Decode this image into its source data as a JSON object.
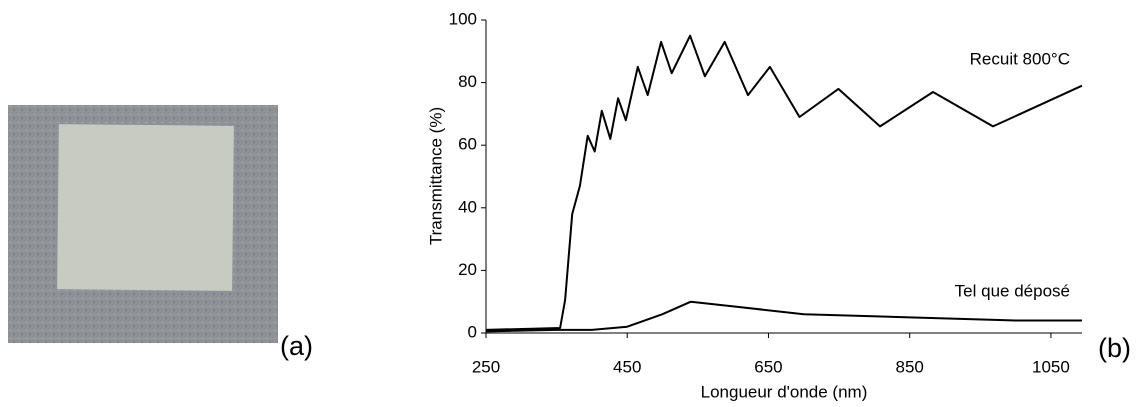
{
  "panel_labels": [
    "(a)",
    "(b)"
  ],
  "chart_data": {
    "type": "line",
    "x_label": "Longueur d'onde (nm)",
    "y_label": "Transmittance (%)",
    "xlim": [
      250,
      1094
    ],
    "ylim": [
      0,
      100
    ],
    "xticks": [
      250,
      450,
      650,
      850,
      1050
    ],
    "yticks": [
      0,
      20,
      40,
      60,
      80,
      100
    ],
    "grid": false,
    "series": [
      {
        "name": "Recuit 800°C",
        "color": "#000000",
        "x": [
          250,
          355,
          362,
          372,
          383,
          394,
          404,
          414,
          426,
          437,
          448,
          465,
          479,
          498,
          513,
          539,
          560,
          588,
          621,
          652,
          694,
          749,
          808,
          883,
          968,
          1094
        ],
        "values": [
          1,
          1.6,
          10.5,
          38,
          47,
          63,
          58,
          71,
          62,
          75,
          68,
          85,
          76,
          93,
          83,
          95,
          82,
          93,
          76,
          85,
          69,
          78,
          66,
          77,
          66,
          79
        ]
      },
      {
        "name": "Tel que déposé",
        "color": "#000000",
        "x": [
          250,
          350,
          400,
          450,
          500,
          540,
          600,
          700,
          850,
          1000,
          1094
        ],
        "values": [
          0.5,
          1,
          1,
          2,
          6,
          10,
          8.5,
          6,
          5,
          4,
          4
        ]
      }
    ]
  }
}
